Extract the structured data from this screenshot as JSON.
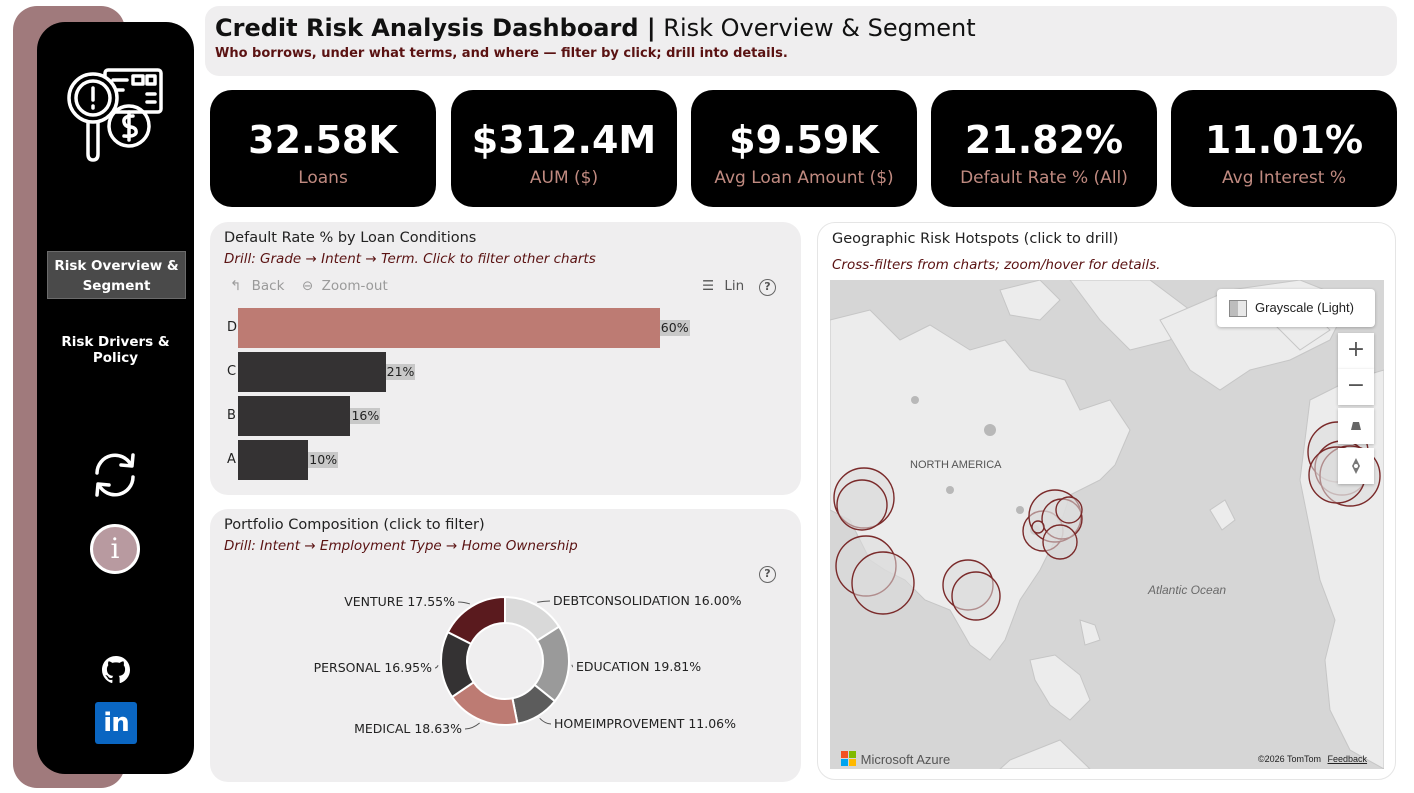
{
  "header": {
    "title_bold": "Credit Risk Analysis Dashboard |",
    "title_rest": " Risk Overview & Segment",
    "subtitle": "Who borrows, under what terms, and where — filter by click; drill into details."
  },
  "sidebar": {
    "nav_active": "Risk Overview & Segment",
    "nav_item": "Risk Drivers & Policy",
    "info_glyph": "i",
    "linkedin_text": "in"
  },
  "kpis": [
    {
      "value": "32.58K",
      "label": "Loans"
    },
    {
      "value": "$312.4M",
      "label": "AUM ($)"
    },
    {
      "value": "$9.59K",
      "label": "Avg Loan Amount ($)"
    },
    {
      "value": "21.82%",
      "label": "Default Rate % (All)"
    },
    {
      "value": "11.01%",
      "label": "Avg Interest %"
    }
  ],
  "default_panel": {
    "title": "Default Rate % by Loan Conditions",
    "drill": "Drill: Grade → Intent → Term. Click to filter other charts",
    "toolbar": {
      "back": "Back",
      "zoom_out": "Zoom-out",
      "lin": "Lin",
      "help": "?"
    }
  },
  "portfolio_panel": {
    "title": "Portfolio Composition (click to filter)",
    "drill": "Drill: Intent → Employment Type → Home Ownership",
    "help": "?"
  },
  "map_panel": {
    "title": "Geographic Risk Hotspots (click to drill)",
    "subtitle": "Cross-filters from charts; zoom/hover for details.",
    "style_button": "Grayscale (Light)",
    "label_na": "NORTH AMERICA",
    "label_atlantic": "Atlantic Ocean",
    "brand": "Microsoft Azure",
    "copyright": "©2026 TomTom",
    "feedback": "Feedback",
    "zoom_in": "+",
    "zoom_out": "−"
  },
  "chart_data": [
    {
      "type": "bar",
      "orientation": "horizontal",
      "categories": [
        "D",
        "C",
        "B",
        "A"
      ],
      "values": [
        60,
        21,
        16,
        10
      ],
      "value_labels": [
        "60%",
        "21%",
        "16%",
        "10%"
      ],
      "colors": [
        "#bd7b73",
        "#343233",
        "#343233",
        "#343233"
      ],
      "xlim": [
        0,
        100
      ]
    },
    {
      "type": "pie",
      "donut": true,
      "categories": [
        "DEBTCONSOLIDATION",
        "EDUCATION",
        "HOMEIMPROVEMENT",
        "MEDICAL",
        "PERSONAL",
        "VENTURE"
      ],
      "values": [
        16.0,
        19.81,
        11.06,
        18.63,
        16.95,
        17.55
      ],
      "labels": [
        "DEBTCONSOLIDATION 16.00%",
        "EDUCATION 19.81%",
        "HOMEIMPROVEMENT 11.06%",
        "MEDICAL 18.63%",
        "PERSONAL 16.95%",
        "VENTURE 17.55%"
      ],
      "colors": [
        "#d9d9d9",
        "#9a9a9a",
        "#5c5c5c",
        "#bd7b73",
        "#343233",
        "#5a1a1e"
      ]
    }
  ]
}
